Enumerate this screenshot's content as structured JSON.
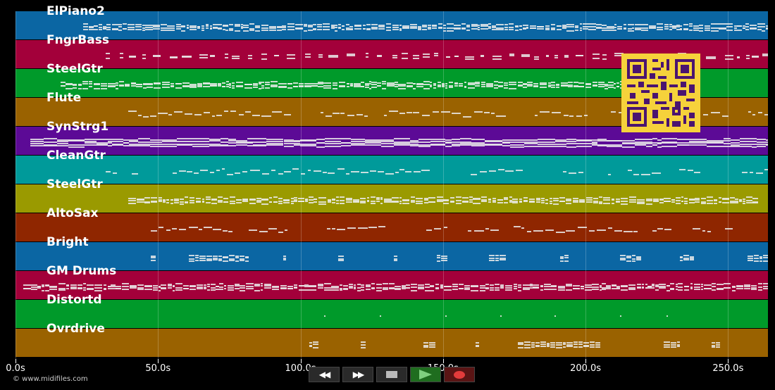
{
  "tracks": [
    {
      "name": "ElPiano2",
      "color": "#0b66a3",
      "start": 0.09,
      "end": 1.0,
      "style": "dense"
    },
    {
      "name": "FngrBass",
      "color": "#a3003a",
      "start": 0.12,
      "end": 1.0,
      "style": "sparse"
    },
    {
      "name": "SteelGtr",
      "color": "#009a2a",
      "start": 0.06,
      "end": 0.86,
      "style": "dense"
    },
    {
      "name": "Flute",
      "color": "#9a6200",
      "start": 0.15,
      "end": 1.0,
      "style": "phrases"
    },
    {
      "name": "SynStrg1",
      "color": "#5c0a96",
      "start": 0.02,
      "end": 1.0,
      "style": "band"
    },
    {
      "name": "CleanGtr",
      "color": "#009a9a",
      "start": 0.12,
      "end": 1.0,
      "style": "phrases"
    },
    {
      "name": "SteelGtr",
      "color": "#9a9a00",
      "start": 0.15,
      "end": 0.98,
      "style": "dense"
    },
    {
      "name": "AltoSax",
      "color": "#8f2600",
      "start": 0.18,
      "end": 1.0,
      "style": "phrases"
    },
    {
      "name": "Bright",
      "color": "#0b66a3",
      "start": 0.18,
      "end": 1.0,
      "style": "stacks"
    },
    {
      "name": "GM Drums",
      "color": "#a3003a",
      "start": 0.01,
      "end": 1.0,
      "style": "dense"
    },
    {
      "name": "Distortd",
      "color": "#009a2a",
      "start": 0.41,
      "end": 0.95,
      "style": "dots"
    },
    {
      "name": "Ovrdrive",
      "color": "#9a6200",
      "start": 0.39,
      "end": 0.95,
      "style": "stacks"
    }
  ],
  "timeline": {
    "duration": 264,
    "ticks": [
      {
        "t": 0,
        "label": "0.0s"
      },
      {
        "t": 50,
        "label": "50.0s"
      },
      {
        "t": 100,
        "label": "100.0s"
      },
      {
        "t": 150,
        "label": "150.0s"
      },
      {
        "t": 200,
        "label": "200.0s"
      },
      {
        "t": 250,
        "label": "250.0s"
      }
    ]
  },
  "copyright": "© www.midifiles.com",
  "controls": {
    "rewind": "◀◀",
    "forward": "▶▶"
  }
}
